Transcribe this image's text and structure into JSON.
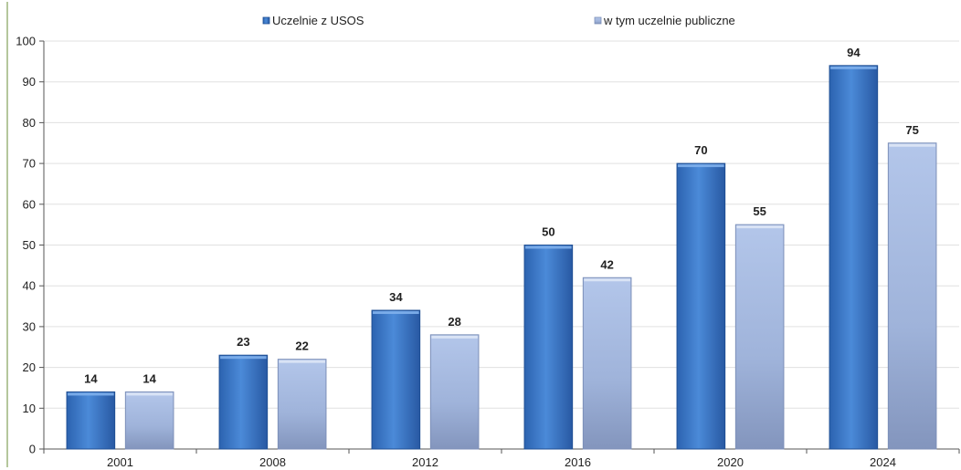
{
  "chart_data": {
    "type": "bar",
    "categories": [
      "2001",
      "2008",
      "2012",
      "2016",
      "2020",
      "2024"
    ],
    "series": [
      {
        "name": "Uczelnie z USOS",
        "values": [
          14,
          23,
          34,
          50,
          70,
          94
        ],
        "color": "#3a78c8"
      },
      {
        "name": "w tym uczelnie publiczne",
        "values": [
          14,
          22,
          28,
          42,
          55,
          75
        ],
        "color": "#a9bde3"
      }
    ],
    "ylim": [
      0,
      100
    ],
    "yticks": [
      0,
      10,
      20,
      30,
      40,
      50,
      60,
      70,
      80,
      90,
      100
    ],
    "grid": true,
    "legend": "top-center"
  }
}
